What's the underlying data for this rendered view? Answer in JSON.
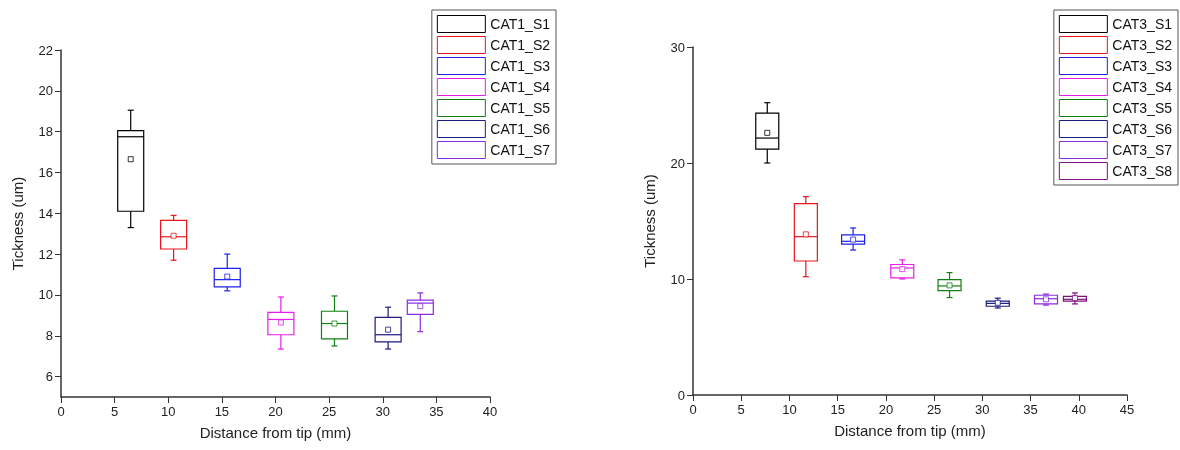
{
  "chart_data": [
    {
      "type": "box",
      "xlabel": "Distance from tip (mm)",
      "ylabel": "Tickness (um)",
      "xlim": [
        0,
        40
      ],
      "xticks": [
        0,
        5,
        10,
        15,
        20,
        25,
        30,
        35,
        40
      ],
      "ylim": [
        5,
        22
      ],
      "yticks": [
        6,
        8,
        10,
        12,
        14,
        16,
        18,
        20,
        22
      ],
      "legend": "top right",
      "series": [
        {
          "name": "CAT1_S1",
          "color": "#000000",
          "x": [
            6.5
          ],
          "boxes": [
            {
              "low": 13.3,
              "q1": 14.1,
              "median": 17.75,
              "q3": 18.05,
              "high": 19.05,
              "mean": 16.65
            }
          ]
        },
        {
          "name": "CAT1_S2",
          "color": "#e8141c",
          "x": [
            10.5
          ],
          "boxes": [
            {
              "low": 11.7,
              "q1": 12.25,
              "median": 12.85,
              "q3": 13.65,
              "high": 13.9,
              "mean": 12.9
            }
          ]
        },
        {
          "name": "CAT1_S3",
          "color": "#1f1fe8",
          "x": [
            15.5
          ],
          "boxes": [
            {
              "low": 10.2,
              "q1": 10.4,
              "median": 10.75,
              "q3": 11.3,
              "high": 12,
              "mean": 10.9
            }
          ]
        },
        {
          "name": "CAT1_S4",
          "color": "#e81ee8",
          "x": [
            20.5
          ],
          "boxes": [
            {
              "low": 7.35,
              "q1": 8.05,
              "median": 8.8,
              "q3": 9.15,
              "high": 9.9,
              "mean": 8.65
            }
          ]
        },
        {
          "name": "CAT1_S5",
          "color": "#108010",
          "x": [
            25.5
          ],
          "boxes": [
            {
              "low": 7.5,
              "q1": 7.85,
              "median": 8.6,
              "q3": 9.2,
              "high": 9.95,
              "mean": 8.6
            }
          ]
        },
        {
          "name": "CAT1_S6",
          "color": "#1a1a80",
          "x": [
            30.5
          ],
          "boxes": [
            {
              "low": 7.35,
              "q1": 7.7,
              "median": 8.05,
              "q3": 8.9,
              "high": 9.4,
              "mean": 8.3
            }
          ]
        },
        {
          "name": "CAT1_S7",
          "color": "#8a2be2",
          "x": [
            33.5
          ],
          "boxes": [
            {
              "low": 8.2,
              "q1": 9.05,
              "median": 9.6,
              "q3": 9.75,
              "high": 10.1,
              "mean": 9.45
            }
          ]
        }
      ]
    },
    {
      "type": "box",
      "xlabel": "Distance from tip (mm)",
      "ylabel": "Tickness (um)",
      "xlim": [
        0,
        45
      ],
      "xticks": [
        0,
        5,
        10,
        15,
        20,
        25,
        30,
        35,
        40,
        45
      ],
      "ylim": [
        0,
        30
      ],
      "yticks": [
        0,
        10,
        20,
        30
      ],
      "legend": "top right",
      "series": [
        {
          "name": "CAT3_S1",
          "color": "#000000",
          "x": [
            7.7
          ],
          "boxes": [
            {
              "low": 20,
              "q1": 21.2,
              "median": 22.15,
              "q3": 24.3,
              "high": 25.2,
              "mean": 22.6
            }
          ]
        },
        {
          "name": "CAT3_S2",
          "color": "#e8141c",
          "x": [
            11.7
          ],
          "boxes": [
            {
              "low": 10.2,
              "q1": 11.55,
              "median": 13.65,
              "q3": 16.5,
              "high": 17.1,
              "mean": 13.85
            }
          ]
        },
        {
          "name": "CAT3_S3",
          "color": "#1f1fe8",
          "x": [
            16.6
          ],
          "boxes": [
            {
              "low": 12.5,
              "q1": 13,
              "median": 13.25,
              "q3": 13.8,
              "high": 14.4,
              "mean": 13.4
            }
          ]
        },
        {
          "name": "CAT3_S4",
          "color": "#e81ee8",
          "x": [
            21.7
          ],
          "boxes": [
            {
              "low": 10,
              "q1": 10.1,
              "median": 10.95,
              "q3": 11.25,
              "high": 11.65,
              "mean": 10.85
            }
          ]
        },
        {
          "name": "CAT3_S5",
          "color": "#108010",
          "x": [
            26.6
          ],
          "boxes": [
            {
              "low": 8.4,
              "q1": 9,
              "median": 9.4,
              "q3": 9.95,
              "high": 10.55,
              "mean": 9.45
            }
          ]
        },
        {
          "name": "CAT3_S6",
          "color": "#1a1a80",
          "x": [
            31.6
          ],
          "boxes": [
            {
              "low": 7.5,
              "q1": 7.65,
              "median": 7.9,
              "q3": 8.1,
              "high": 8.35,
              "mean": 7.95
            }
          ]
        },
        {
          "name": "CAT3_S7",
          "color": "#8a2be2",
          "x": [
            36.6
          ],
          "boxes": [
            {
              "low": 7.75,
              "q1": 7.85,
              "median": 8.3,
              "q3": 8.6,
              "high": 8.7,
              "mean": 8.25
            }
          ]
        },
        {
          "name": "CAT3_S8",
          "color": "#80107f",
          "x": [
            39.6
          ],
          "boxes": [
            {
              "low": 7.85,
              "q1": 8.1,
              "median": 8.25,
              "q3": 8.5,
              "high": 8.8,
              "mean": 8.35
            }
          ]
        }
      ]
    }
  ]
}
